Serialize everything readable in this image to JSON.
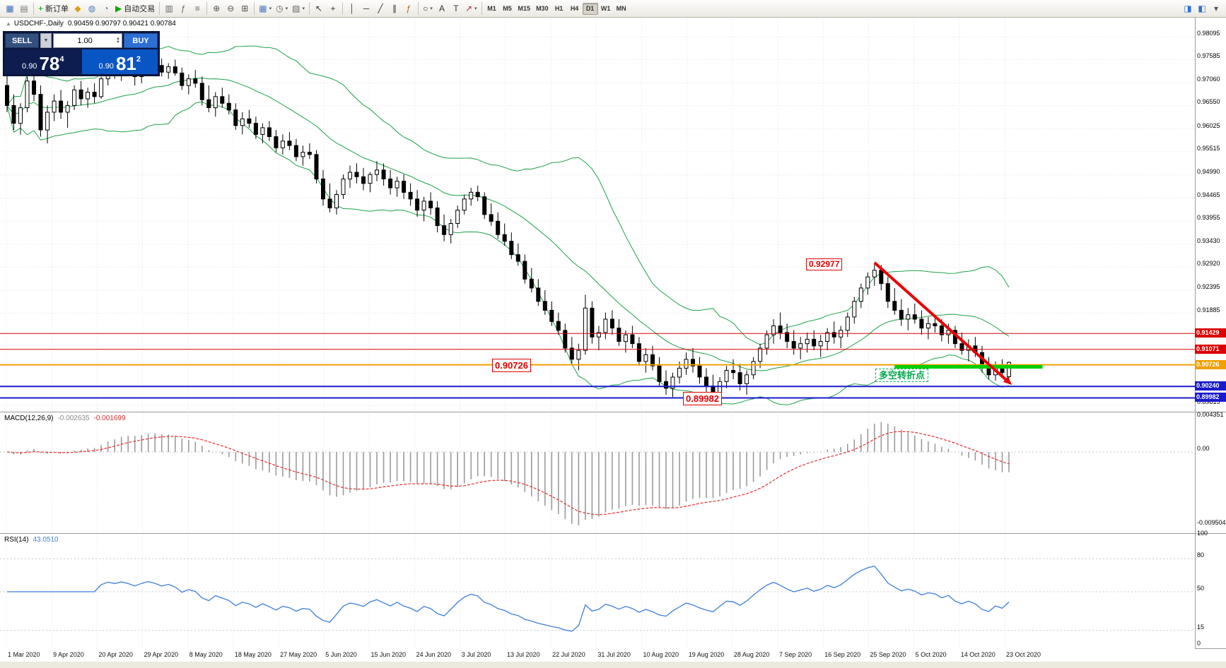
{
  "toolbar": {
    "groups": [
      {
        "items": [
          {
            "name": "new-chart-window-icon",
            "glyph": "▦",
            "color": "#3f6fb5"
          },
          {
            "name": "profiles-icon",
            "glyph": "▤",
            "color": "#777777"
          }
        ]
      },
      {
        "items": [
          {
            "name": "new-order-button",
            "glyph": "+",
            "glyph_color": "#00a000",
            "label": "新订单"
          },
          {
            "name": "market-icon",
            "glyph": "◆",
            "color": "#d8a017"
          },
          {
            "name": "signals-icon",
            "glyph": "◍",
            "color": "#4a7fc1"
          },
          {
            "name": "community-icon",
            "glyph": "◔",
            "color": "#4a7fc1"
          },
          {
            "name": "autotrade-button",
            "glyph": "▶",
            "glyph_color": "#00a800",
            "label": "自动交易"
          }
        ]
      },
      {
        "items": [
          {
            "name": "data-window-icon",
            "glyph": "▥",
            "color": "#666666"
          },
          {
            "name": "indicators-icon",
            "glyph": "ƒ",
            "color": "#666666"
          },
          {
            "name": "objects-list-icon",
            "glyph": "≡",
            "color": "#666666"
          }
        ]
      },
      {
        "items": [
          {
            "name": "zoom-in-icon",
            "glyph": "⊕",
            "color": "#555555"
          },
          {
            "name": "zoom-out-icon",
            "glyph": "⊖",
            "color": "#555555"
          },
          {
            "name": "tile-windows-icon",
            "glyph": "⊞",
            "color": "#555555"
          }
        ]
      },
      {
        "items": [
          {
            "name": "new-chart-icon",
            "glyph": "▦",
            "color": "#4a7fc1",
            "caret": true
          },
          {
            "name": "period-icon",
            "glyph": "◷",
            "color": "#666666",
            "caret": true
          },
          {
            "name": "templates-icon",
            "glyph": "▨",
            "color": "#666666",
            "caret": true
          }
        ]
      },
      {
        "items": [
          {
            "name": "cursor-icon",
            "glyph": "↖",
            "color": "#333333"
          },
          {
            "name": "crosshair-icon",
            "glyph": "+",
            "color": "#333333"
          }
        ]
      },
      {
        "items": [
          {
            "name": "vertical-line-icon",
            "glyph": "│",
            "color": "#333333"
          },
          {
            "name": "horizontal-line-icon",
            "glyph": "─",
            "color": "#333333"
          },
          {
            "name": "trendline-icon",
            "glyph": "╱",
            "color": "#333333"
          },
          {
            "name": "channel-icon",
            "glyph": "∥",
            "color": "#333333"
          },
          {
            "name": "fibonacci-icon",
            "glyph": "ƒ",
            "color": "#b06a00"
          }
        ]
      },
      {
        "items": [
          {
            "name": "shapes-icon",
            "glyph": "○",
            "color": "#333333",
            "caret": true
          },
          {
            "name": "text-icon",
            "glyph": "A",
            "color": "#333333"
          },
          {
            "name": "label-icon",
            "glyph": "T",
            "color": "#333333"
          },
          {
            "name": "arrows-icon",
            "glyph": "↗",
            "color": "#b03030",
            "caret": true
          }
        ]
      }
    ],
    "timeframes": [
      "M1",
      "M5",
      "M15",
      "M30",
      "H1",
      "H4",
      "D1",
      "W1",
      "MN"
    ],
    "active_timeframe": "D1",
    "right_icons": [
      {
        "name": "chart-shift-icon",
        "glyph": "◨",
        "color": "#2f6fd0"
      },
      {
        "name": "autoscroll-icon",
        "glyph": "◧",
        "color": "#2f6fd0"
      },
      {
        "name": "toolbar-more-icon",
        "glyph": "▾",
        "color": "#555555"
      }
    ]
  },
  "chart_header": {
    "collapse_icon": "▲",
    "symbol": "USDCHF-,Daily",
    "ohlc": "0.90459 0.90797 0.90421 0.90784"
  },
  "trade_panel": {
    "sell_label": "SELL",
    "buy_label": "BUY",
    "volume": "1.00",
    "sell_price": {
      "prefix": "0.90",
      "big": "78",
      "sup": "4"
    },
    "buy_price": {
      "prefix": "0.90",
      "big": "81",
      "sup": "2"
    }
  },
  "annotations": {
    "peak": "0.92977",
    "mid": "0.90726",
    "low": "0.89982",
    "pivot": "多空转折点"
  },
  "price_scale": {
    "ticks": [
      0.98095,
      0.97585,
      0.9706,
      0.9655,
      0.96025,
      0.95515,
      0.9499,
      0.94465,
      0.93955,
      0.9343,
      0.9292,
      0.92395,
      0.91885,
      0.89815
    ],
    "badges": [
      {
        "label": "0.91429",
        "value": 0.91429,
        "color": "#dd0000"
      },
      {
        "label": "0.91071",
        "value": 0.91071,
        "color": "#dd0000"
      },
      {
        "label": "0.90726",
        "value": 0.90726,
        "color": "#f0a000"
      },
      {
        "label": "0.90240",
        "value": 0.9024,
        "color": "#1a1acc"
      },
      {
        "label": "0.89982",
        "value": 0.89982,
        "color": "#1a1acc"
      }
    ]
  },
  "macd_panel": {
    "title": "MACD(12,26,9)",
    "main_value": "-0.002635",
    "signal_value": "-0.001699",
    "scale": [
      {
        "label": "0.004351",
        "value": 0.004351
      },
      {
        "label": "0.00",
        "value": 0
      },
      {
        "label": "-0.009504",
        "value": -0.009504
      }
    ]
  },
  "rsi_panel": {
    "title": "RSI(14)",
    "value": "43.0510",
    "scale": [
      {
        "label": "100",
        "value": 100
      },
      {
        "label": "80",
        "value": 80
      },
      {
        "label": "50",
        "value": 50
      },
      {
        "label": "15",
        "value": 15
      },
      {
        "label": "0",
        "value": 0
      }
    ],
    "levels": [
      80,
      50,
      15
    ]
  },
  "chart_data": {
    "type": "candlestick",
    "symbol": "USDCHF",
    "timeframe": "Daily",
    "price_range": [
      0.89815,
      0.98095
    ],
    "x_labels": [
      "1 Mar 2020",
      "9 Apr 2020",
      "20 Apr 2020",
      "29 Apr 2020",
      "8 May 2020",
      "18 May 2020",
      "27 May 2020",
      "5 Jun 2020",
      "15 Jun 2020",
      "24 Jun 2020",
      "3 Jul 2020",
      "13 Jul 2020",
      "22 Jul 2020",
      "31 Jul 2020",
      "10 Aug 2020",
      "19 Aug 2020",
      "28 Aug 2020",
      "7 Sep 2020",
      "16 Sep 2020",
      "25 Sep 2020",
      "5 Oct 2020",
      "14 Oct 2020",
      "23 Oct 2020"
    ],
    "bollinger": {
      "period": 20,
      "deviation": 2,
      "color": "#1da14a"
    },
    "macd": {
      "fast": 12,
      "slow": 26,
      "signal": 9
    },
    "rsi": {
      "period": 14
    },
    "hlines": [
      {
        "value": 0.91429,
        "color": "#dd0000",
        "width": 1
      },
      {
        "value": 0.91071,
        "color": "#dd0000",
        "width": 1
      },
      {
        "value": 0.90726,
        "color": "#f0a000",
        "width": 2
      },
      {
        "value": 0.9024,
        "color": "#1a1acc",
        "width": 2
      },
      {
        "value": 0.89982,
        "color": "#1a1acc",
        "width": 2
      }
    ],
    "support_segment": {
      "price": 0.9068,
      "from_index": 132,
      "to_index": 154,
      "color": "#00cf00"
    },
    "trend_arrow": {
      "from": {
        "index": 129,
        "price": 0.9302
      },
      "to": {
        "index": 148.5,
        "price": 0.904
      },
      "color": "#e80000"
    },
    "candles": [
      [
        0.97,
        0.973,
        0.964,
        0.9655
      ],
      [
        0.9655,
        0.968,
        0.96,
        0.9615
      ],
      [
        0.9615,
        0.966,
        0.959,
        0.965
      ],
      [
        0.965,
        0.972,
        0.964,
        0.971
      ],
      [
        0.971,
        0.9745,
        0.9665,
        0.968
      ],
      [
        0.968,
        0.97,
        0.9585,
        0.96
      ],
      [
        0.96,
        0.9655,
        0.957,
        0.964
      ],
      [
        0.964,
        0.968,
        0.962,
        0.9665
      ],
      [
        0.9665,
        0.969,
        0.9625,
        0.964
      ],
      [
        0.964,
        0.9665,
        0.9605,
        0.9655
      ],
      [
        0.9655,
        0.97,
        0.9645,
        0.969
      ],
      [
        0.969,
        0.971,
        0.9655,
        0.967
      ],
      [
        0.967,
        0.9695,
        0.965,
        0.9685
      ],
      [
        0.9685,
        0.9705,
        0.966,
        0.9675
      ],
      [
        0.9675,
        0.972,
        0.967,
        0.9715
      ],
      [
        0.9715,
        0.975,
        0.97,
        0.974
      ],
      [
        0.974,
        0.976,
        0.9715,
        0.973
      ],
      [
        0.973,
        0.9755,
        0.971,
        0.9745
      ],
      [
        0.9745,
        0.9765,
        0.9725,
        0.9735
      ],
      [
        0.9735,
        0.975,
        0.97,
        0.972
      ],
      [
        0.972,
        0.9745,
        0.9705,
        0.974
      ],
      [
        0.974,
        0.9768,
        0.973,
        0.9755
      ],
      [
        0.9755,
        0.977,
        0.9735,
        0.9745
      ],
      [
        0.9745,
        0.976,
        0.972,
        0.973
      ],
      [
        0.973,
        0.975,
        0.9715,
        0.9742
      ],
      [
        0.9742,
        0.9758,
        0.9722,
        0.9728
      ],
      [
        0.9728,
        0.974,
        0.969,
        0.97
      ],
      [
        0.97,
        0.9725,
        0.968,
        0.9715
      ],
      [
        0.9715,
        0.9735,
        0.9695,
        0.9705
      ],
      [
        0.9705,
        0.972,
        0.9655,
        0.9668
      ],
      [
        0.9668,
        0.97,
        0.964,
        0.965
      ],
      [
        0.965,
        0.9685,
        0.963,
        0.9675
      ],
      [
        0.9675,
        0.9695,
        0.965,
        0.966
      ],
      [
        0.966,
        0.968,
        0.9635,
        0.9645
      ],
      [
        0.9645,
        0.966,
        0.96,
        0.961
      ],
      [
        0.961,
        0.964,
        0.959,
        0.9625
      ],
      [
        0.9625,
        0.9645,
        0.9605,
        0.9615
      ],
      [
        0.9615,
        0.963,
        0.958,
        0.959
      ],
      [
        0.959,
        0.9615,
        0.957,
        0.9605
      ],
      [
        0.9605,
        0.962,
        0.9575,
        0.9585
      ],
      [
        0.9585,
        0.96,
        0.955,
        0.956
      ],
      [
        0.956,
        0.959,
        0.9545,
        0.9575
      ],
      [
        0.9575,
        0.9595,
        0.9555,
        0.9565
      ],
      [
        0.9565,
        0.958,
        0.953,
        0.954
      ],
      [
        0.954,
        0.9565,
        0.952,
        0.955
      ],
      [
        0.955,
        0.957,
        0.9535,
        0.9545
      ],
      [
        0.9545,
        0.9555,
        0.948,
        0.949
      ],
      [
        0.949,
        0.951,
        0.943,
        0.9445
      ],
      [
        0.9445,
        0.948,
        0.9415,
        0.9425
      ],
      [
        0.9425,
        0.9465,
        0.941,
        0.9455
      ],
      [
        0.9455,
        0.95,
        0.9445,
        0.949
      ],
      [
        0.949,
        0.952,
        0.947,
        0.9505
      ],
      [
        0.9505,
        0.9525,
        0.948,
        0.9495
      ],
      [
        0.9495,
        0.9515,
        0.9465,
        0.948
      ],
      [
        0.948,
        0.9505,
        0.946,
        0.95
      ],
      [
        0.95,
        0.953,
        0.9485,
        0.951
      ],
      [
        0.951,
        0.9525,
        0.9475,
        0.949
      ],
      [
        0.949,
        0.951,
        0.9455,
        0.947
      ],
      [
        0.947,
        0.9495,
        0.945,
        0.9485
      ],
      [
        0.9485,
        0.95,
        0.9445,
        0.946
      ],
      [
        0.946,
        0.948,
        0.943,
        0.9445
      ],
      [
        0.9445,
        0.9465,
        0.9405,
        0.942
      ],
      [
        0.942,
        0.945,
        0.9395,
        0.944
      ],
      [
        0.944,
        0.946,
        0.941,
        0.9425
      ],
      [
        0.9425,
        0.944,
        0.937,
        0.9385
      ],
      [
        0.9385,
        0.941,
        0.935,
        0.9365
      ],
      [
        0.9365,
        0.94,
        0.9345,
        0.939
      ],
      [
        0.939,
        0.943,
        0.938,
        0.942
      ],
      [
        0.942,
        0.9455,
        0.941,
        0.9445
      ],
      [
        0.9445,
        0.947,
        0.943,
        0.946
      ],
      [
        0.946,
        0.9475,
        0.944,
        0.945
      ],
      [
        0.945,
        0.946,
        0.94,
        0.941
      ],
      [
        0.941,
        0.9435,
        0.9385,
        0.9395
      ],
      [
        0.9395,
        0.9415,
        0.9355,
        0.9365
      ],
      [
        0.9365,
        0.939,
        0.934,
        0.935
      ],
      [
        0.935,
        0.937,
        0.931,
        0.932
      ],
      [
        0.932,
        0.9345,
        0.9295,
        0.9305
      ],
      [
        0.9305,
        0.932,
        0.9255,
        0.9265
      ],
      [
        0.9265,
        0.929,
        0.9235,
        0.9245
      ],
      [
        0.9245,
        0.9265,
        0.9205,
        0.9215
      ],
      [
        0.9215,
        0.924,
        0.9185,
        0.9195
      ],
      [
        0.9195,
        0.9215,
        0.916,
        0.917
      ],
      [
        0.917,
        0.919,
        0.914,
        0.915
      ],
      [
        0.915,
        0.9165,
        0.91,
        0.911
      ],
      [
        0.911,
        0.9135,
        0.9075,
        0.9085
      ],
      [
        0.9085,
        0.912,
        0.906,
        0.9105
      ],
      [
        0.9105,
        0.923,
        0.9095,
        0.92
      ],
      [
        0.92,
        0.9215,
        0.912,
        0.9135
      ],
      [
        0.9135,
        0.916,
        0.9105,
        0.9145
      ],
      [
        0.9145,
        0.919,
        0.913,
        0.9175
      ],
      [
        0.9175,
        0.9195,
        0.914,
        0.9155
      ],
      [
        0.9155,
        0.9175,
        0.9115,
        0.9125
      ],
      [
        0.9125,
        0.915,
        0.91,
        0.914
      ],
      [
        0.914,
        0.916,
        0.911,
        0.912
      ],
      [
        0.912,
        0.9135,
        0.907,
        0.908
      ],
      [
        0.908,
        0.911,
        0.9055,
        0.9095
      ],
      [
        0.9095,
        0.9115,
        0.906,
        0.907
      ],
      [
        0.907,
        0.909,
        0.9025,
        0.9035
      ],
      [
        0.9035,
        0.906,
        0.9005,
        0.902
      ],
      [
        0.902,
        0.9055,
        0.9,
        0.9045
      ],
      [
        0.9045,
        0.908,
        0.903,
        0.9065
      ],
      [
        0.9065,
        0.91,
        0.905,
        0.9085
      ],
      [
        0.9085,
        0.911,
        0.9055,
        0.907
      ],
      [
        0.907,
        0.909,
        0.903,
        0.9045
      ],
      [
        0.9045,
        0.9065,
        0.901,
        0.9025
      ],
      [
        0.9025,
        0.905,
        0.8998,
        0.901
      ],
      [
        0.901,
        0.9045,
        0.9,
        0.9035
      ],
      [
        0.9035,
        0.907,
        0.902,
        0.906
      ],
      [
        0.906,
        0.9085,
        0.904,
        0.9055
      ],
      [
        0.9055,
        0.9075,
        0.9015,
        0.903
      ],
      [
        0.903,
        0.906,
        0.9005,
        0.905
      ],
      [
        0.905,
        0.909,
        0.904,
        0.908
      ],
      [
        0.908,
        0.912,
        0.9065,
        0.911
      ],
      [
        0.911,
        0.915,
        0.9095,
        0.914
      ],
      [
        0.914,
        0.9175,
        0.912,
        0.916
      ],
      [
        0.916,
        0.919,
        0.913,
        0.9145
      ],
      [
        0.9145,
        0.9165,
        0.911,
        0.9125
      ],
      [
        0.9125,
        0.915,
        0.9095,
        0.911
      ],
      [
        0.911,
        0.9135,
        0.9085,
        0.912
      ],
      [
        0.912,
        0.9145,
        0.91,
        0.913
      ],
      [
        0.913,
        0.915,
        0.9105,
        0.9115
      ],
      [
        0.9115,
        0.914,
        0.909,
        0.9125
      ],
      [
        0.9125,
        0.9155,
        0.9105,
        0.9145
      ],
      [
        0.9145,
        0.917,
        0.912,
        0.9135
      ],
      [
        0.9135,
        0.916,
        0.911,
        0.915
      ],
      [
        0.915,
        0.919,
        0.9135,
        0.918
      ],
      [
        0.918,
        0.9225,
        0.9165,
        0.9215
      ],
      [
        0.9215,
        0.9255,
        0.92,
        0.9245
      ],
      [
        0.9245,
        0.928,
        0.923,
        0.927
      ],
      [
        0.927,
        0.9298,
        0.925,
        0.9285
      ],
      [
        0.9285,
        0.9297,
        0.924,
        0.9255
      ],
      [
        0.9255,
        0.927,
        0.92,
        0.9215
      ],
      [
        0.9215,
        0.9245,
        0.9185,
        0.9195
      ],
      [
        0.9195,
        0.922,
        0.916,
        0.9175
      ],
      [
        0.9175,
        0.92,
        0.915,
        0.9185
      ],
      [
        0.9185,
        0.921,
        0.9165,
        0.9175
      ],
      [
        0.9175,
        0.9195,
        0.914,
        0.9155
      ],
      [
        0.9155,
        0.918,
        0.913,
        0.9165
      ],
      [
        0.9165,
        0.9185,
        0.9145,
        0.916
      ],
      [
        0.916,
        0.9175,
        0.9125,
        0.914
      ],
      [
        0.914,
        0.9165,
        0.912,
        0.915
      ],
      [
        0.915,
        0.916,
        0.911,
        0.912
      ],
      [
        0.912,
        0.9145,
        0.9095,
        0.9105
      ],
      [
        0.9105,
        0.913,
        0.908,
        0.9115
      ],
      [
        0.9115,
        0.9135,
        0.909,
        0.91
      ],
      [
        0.91,
        0.9115,
        0.9055,
        0.9065
      ],
      [
        0.9065,
        0.909,
        0.904,
        0.905
      ],
      [
        0.905,
        0.908,
        0.9037,
        0.907
      ],
      [
        0.907,
        0.9085,
        0.9045,
        0.9055
      ],
      [
        0.9046,
        0.908,
        0.9042,
        0.9078
      ]
    ]
  }
}
